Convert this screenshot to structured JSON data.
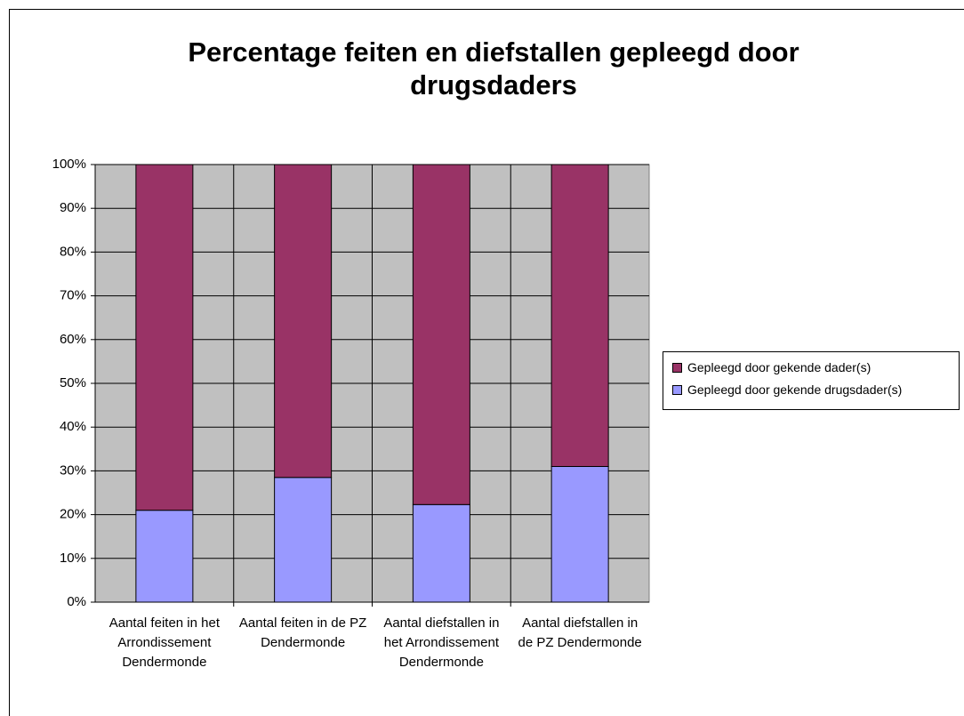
{
  "chart_data": {
    "type": "stacked_bar",
    "title": "Percentage feiten en diefstallen gepleegd door drugsdaders",
    "categories": [
      "Aantal feiten in het Arrondissement Dendermonde",
      "Aantal feiten in de PZ Dendermonde",
      "Aantal diefstallen in het Arrondissement Dendermonde",
      "Aantal diefstallen in de PZ Dendermonde"
    ],
    "series": [
      {
        "name": "Gepleegd door gekende drugsdader(s)",
        "color": "#9999ff",
        "values": [
          21,
          28.5,
          22.3,
          31
        ]
      },
      {
        "name": "Gepleegd door gekende dader(s)",
        "color": "#993366",
        "values": [
          79,
          71.5,
          77.7,
          69
        ]
      }
    ],
    "ylim": [
      0,
      100
    ],
    "yticks": [
      {
        "value": 0,
        "label": "0%"
      },
      {
        "value": 10,
        "label": "10%"
      },
      {
        "value": 20,
        "label": "20%"
      },
      {
        "value": 30,
        "label": "30%"
      },
      {
        "value": 40,
        "label": "40%"
      },
      {
        "value": 50,
        "label": "50%"
      },
      {
        "value": 60,
        "label": "60%"
      },
      {
        "value": 70,
        "label": "70%"
      },
      {
        "value": 80,
        "label": "80%"
      },
      {
        "value": 90,
        "label": "90%"
      },
      {
        "value": 100,
        "label": "100%"
      }
    ],
    "grid": true,
    "plot_background": "#c0c0c0",
    "legend": "right"
  }
}
